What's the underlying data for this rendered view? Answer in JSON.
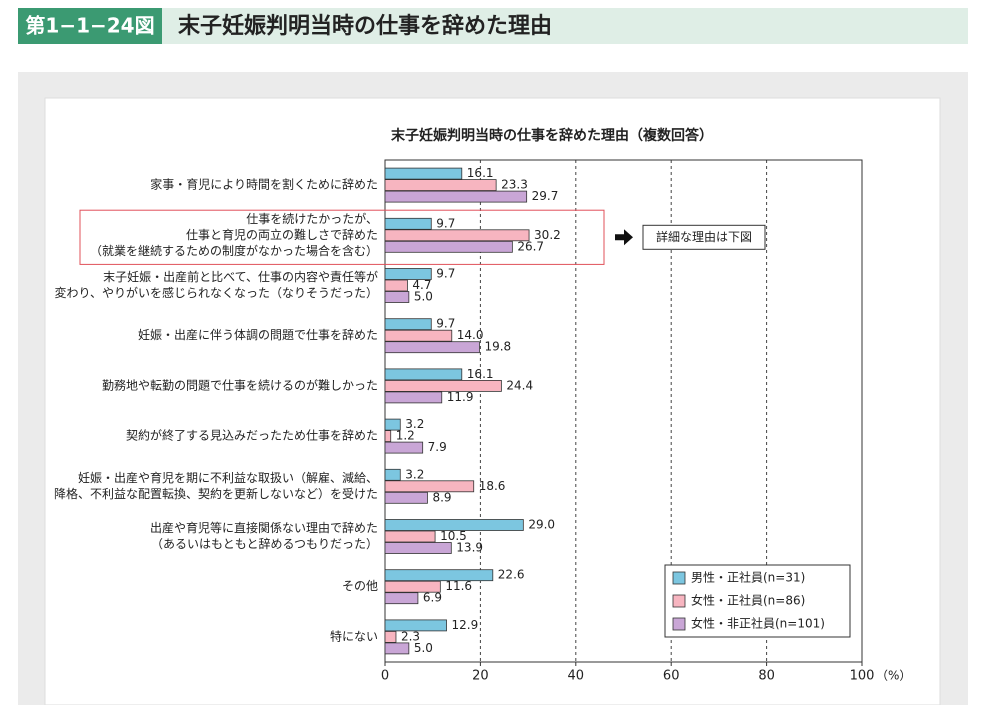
{
  "header": {
    "figure_label": "第1−1−24図",
    "title": "末子妊娠判明当時の仕事を辞めた理由"
  },
  "chart_data": {
    "type": "hbar",
    "title": "末子妊娠判明当時の仕事を辞めた理由（複数回答）",
    "categories": [
      "家事・育児により時間を割くために辞めた",
      "仕事を続けたかったが、\n仕事と育児の両立の難しさで辞めた\n（就業を継続するための制度がなかった場合を含む）",
      "末子妊娠・出産前と比べて、仕事の内容や責任等が\n変わり、やりがいを感じられなくなった（なりそうだった）",
      "妊娠・出産に伴う体調の問題で仕事を辞めた",
      "勤務地や転勤の問題で仕事を続けるのが難しかった",
      "契約が終了する見込みだったため仕事を辞めた",
      "妊娠・出産や育児を期に不利益な取扱い（解雇、減給、\n降格、不利益な配置転換、契約を更新しないなど）を受けた",
      "出産や育児等に直接関係ない理由で辞めた\n（あるいはもともと辞めるつもりだった）",
      "その他",
      "特にない"
    ],
    "series": [
      {
        "name": "男性・正社員(n=31)",
        "color": "#7cc6e0",
        "values": [
          16.1,
          9.7,
          9.7,
          9.7,
          16.1,
          3.2,
          3.2,
          29.0,
          22.6,
          12.9
        ],
        "value_labels": [
          "16.1",
          "9.7",
          "9.7",
          "9.7",
          "16.1",
          "3.2",
          "3.2",
          "29.0",
          "22.6",
          "12.9"
        ]
      },
      {
        "name": "女性・正社員(n=86)",
        "color": "#f7b5c0",
        "values": [
          23.3,
          30.2,
          4.7,
          14.0,
          24.4,
          1.2,
          18.6,
          10.5,
          11.6,
          2.3
        ],
        "value_labels": [
          "23.3",
          "30.2",
          "4.7",
          "14.0",
          "24.4",
          "1.2",
          "18.6",
          "10.5",
          "11.6",
          "2.3"
        ]
      },
      {
        "name": "女性・非正社員(n=101)",
        "color": "#c9a6d6",
        "values": [
          29.7,
          26.7,
          5.0,
          19.8,
          11.9,
          7.9,
          8.9,
          13.9,
          6.9,
          5.0
        ],
        "value_labels": [
          "29.7",
          "26.7",
          "5.0",
          "19.8",
          "11.9",
          "7.9",
          "8.9",
          "13.9",
          "6.9",
          "5.0"
        ]
      }
    ],
    "xlim": [
      0,
      100
    ],
    "xticks": [
      0,
      20,
      40,
      60,
      80,
      100
    ],
    "x_unit": "（%）",
    "grid": true,
    "legend": "lower right",
    "highlighted_category": 1,
    "annotation": "詳細な理由は下図"
  }
}
